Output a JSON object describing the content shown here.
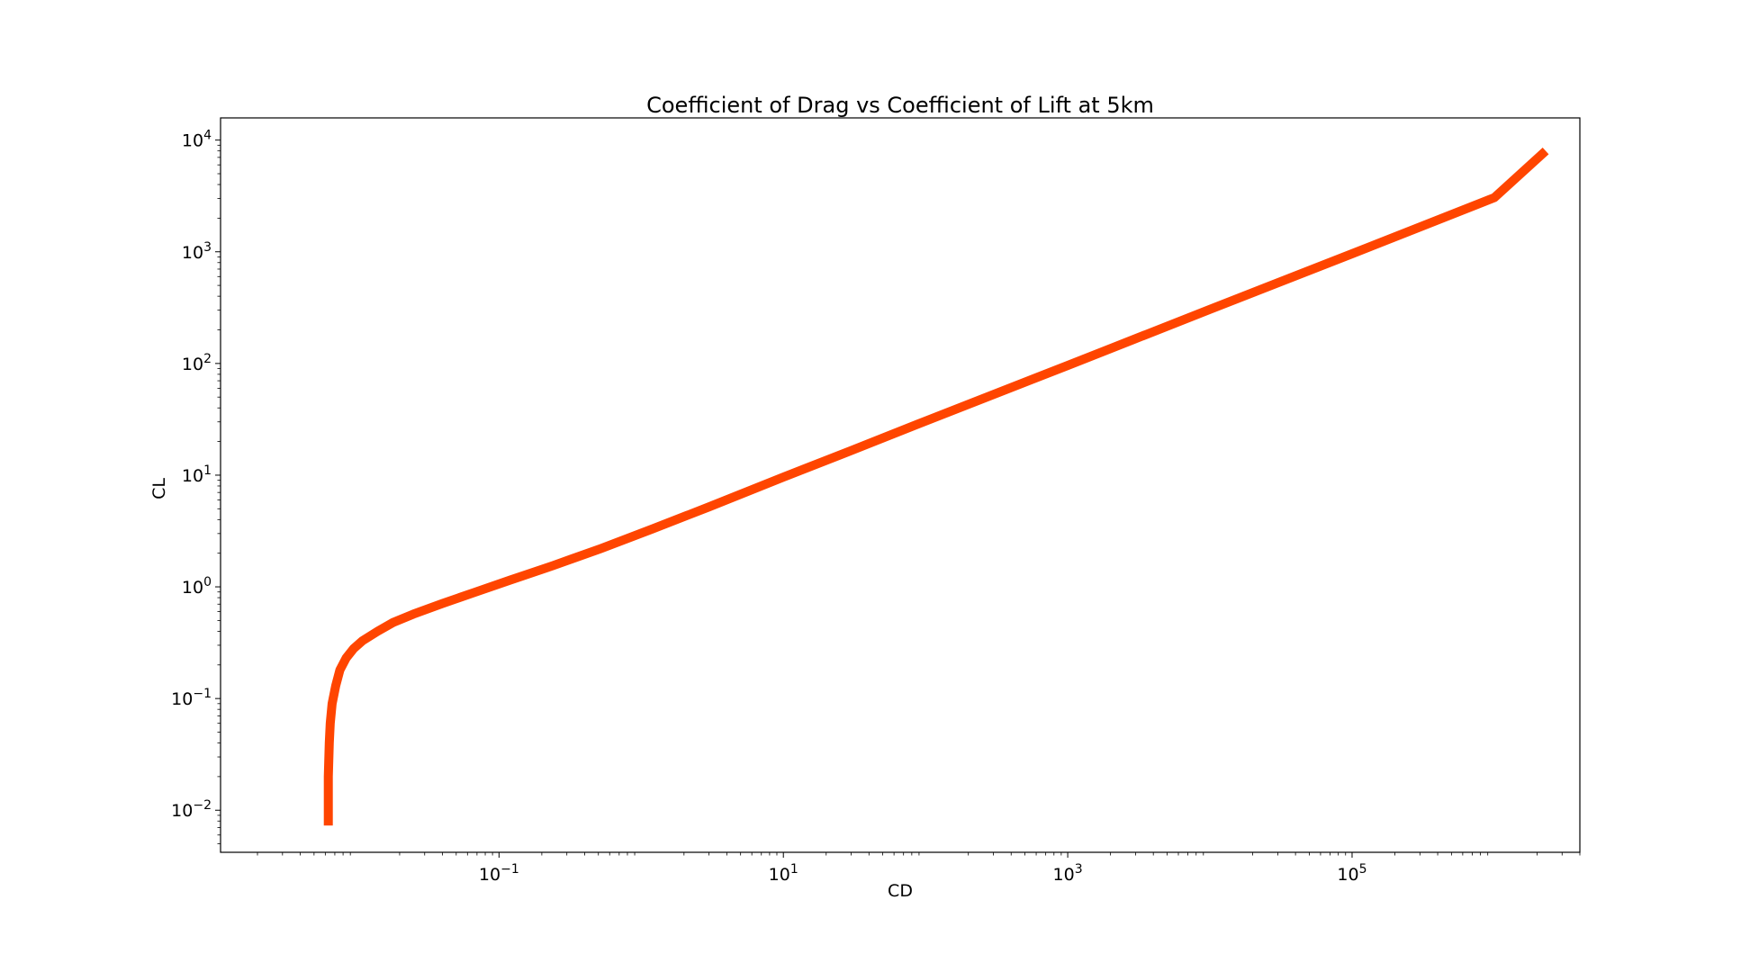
{
  "chart_data": {
    "type": "line",
    "title": "Coefficient of Drag vs Coefficient of Lift at 5km",
    "xlabel": "CD",
    "ylabel": "CL",
    "xscale": "log",
    "yscale": "log",
    "xlim": [
      0.0011,
      4000000
    ],
    "ylim": [
      0.0042,
      15800
    ],
    "grid": false,
    "legend": "none",
    "line_color": "#ff4500",
    "x_ticks": [
      {
        "value": 0.1,
        "base": "10",
        "exp": "−1"
      },
      {
        "value": 10,
        "base": "10",
        "exp": "1"
      },
      {
        "value": 1000,
        "base": "10",
        "exp": "3"
      },
      {
        "value": 100000,
        "base": "10",
        "exp": "5"
      }
    ],
    "y_ticks": [
      {
        "value": 0.01,
        "base": "10",
        "exp": "−2"
      },
      {
        "value": 0.1,
        "base": "10",
        "exp": "−1"
      },
      {
        "value": 1,
        "base": "10",
        "exp": "0"
      },
      {
        "value": 10,
        "base": "10",
        "exp": "1"
      },
      {
        "value": 100,
        "base": "10",
        "exp": "2"
      },
      {
        "value": 1000,
        "base": "10",
        "exp": "3"
      },
      {
        "value": 10000,
        "base": "10",
        "exp": "4"
      }
    ],
    "series": [
      {
        "x": [
          0.0063,
          0.0063,
          0.0064,
          0.0065,
          0.0067,
          0.0071,
          0.0076,
          0.0084,
          0.0095,
          0.011,
          0.014,
          0.018,
          0.025,
          0.04,
          0.067,
          0.12,
          0.24,
          0.52,
          1.2,
          3.0,
          10,
          30,
          100,
          1000,
          10000,
          100000,
          1000000,
          2300000
        ],
        "y": [
          0.0073,
          0.02,
          0.04,
          0.06,
          0.09,
          0.13,
          0.18,
          0.23,
          0.28,
          0.33,
          0.4,
          0.48,
          0.57,
          0.71,
          0.89,
          1.15,
          1.55,
          2.2,
          3.3,
          5.2,
          9.6,
          16.6,
          30.5,
          96,
          305,
          960,
          3050,
          8000
        ]
      }
    ]
  }
}
